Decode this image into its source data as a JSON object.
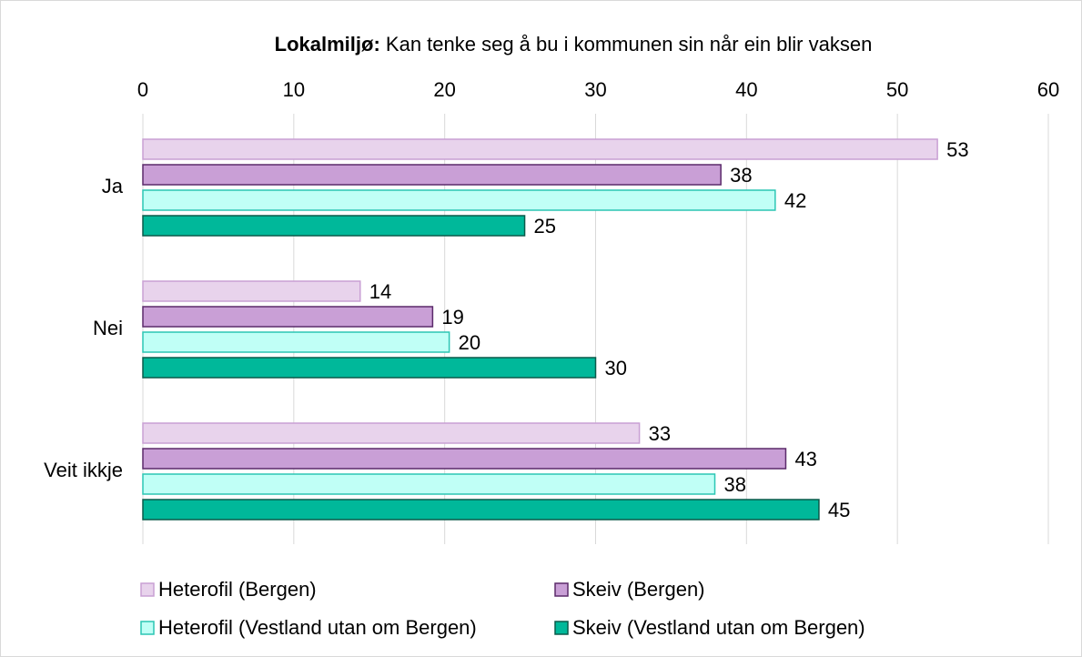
{
  "chart_data": {
    "type": "barh",
    "title_prefix": "Lokalmiljø:",
    "title": "Kan tenke seg å bu i kommunen sin når ein blir vaksen",
    "categories": [
      "Ja",
      "Nei",
      "Veit ikkje"
    ],
    "series": [
      {
        "name": "Heterofil (Bergen)",
        "color": "#e8d3ec",
        "edge": "#c9a0d4",
        "values": [
          52.65,
          14.4,
          32.9
        ],
        "value_labels": [
          "53",
          "14",
          "33"
        ]
      },
      {
        "name": "Skeiv (Bergen)",
        "color": "#c99fd6",
        "edge": "#5b2a6a",
        "values": [
          38.3,
          19.2,
          42.6
        ],
        "value_labels": [
          "38",
          "19",
          "43"
        ]
      },
      {
        "name": "Heterofil (Vestland utan om Bergen)",
        "color": "#c0fff6",
        "edge": "#2bc6b4",
        "values": [
          41.9,
          20.3,
          37.9
        ],
        "value_labels": [
          "42",
          "20",
          "38"
        ]
      },
      {
        "name": "Skeiv (Vestland utan om Bergen)",
        "color": "#00b89a",
        "edge": "#0a5a4a",
        "values": [
          25.3,
          30.0,
          44.8
        ],
        "value_labels": [
          "25",
          "30",
          "45"
        ]
      }
    ],
    "xlim": [
      0,
      60
    ],
    "xticks": [
      0,
      10,
      20,
      30,
      40,
      50,
      60
    ],
    "grid": true,
    "legend": "bottom"
  }
}
